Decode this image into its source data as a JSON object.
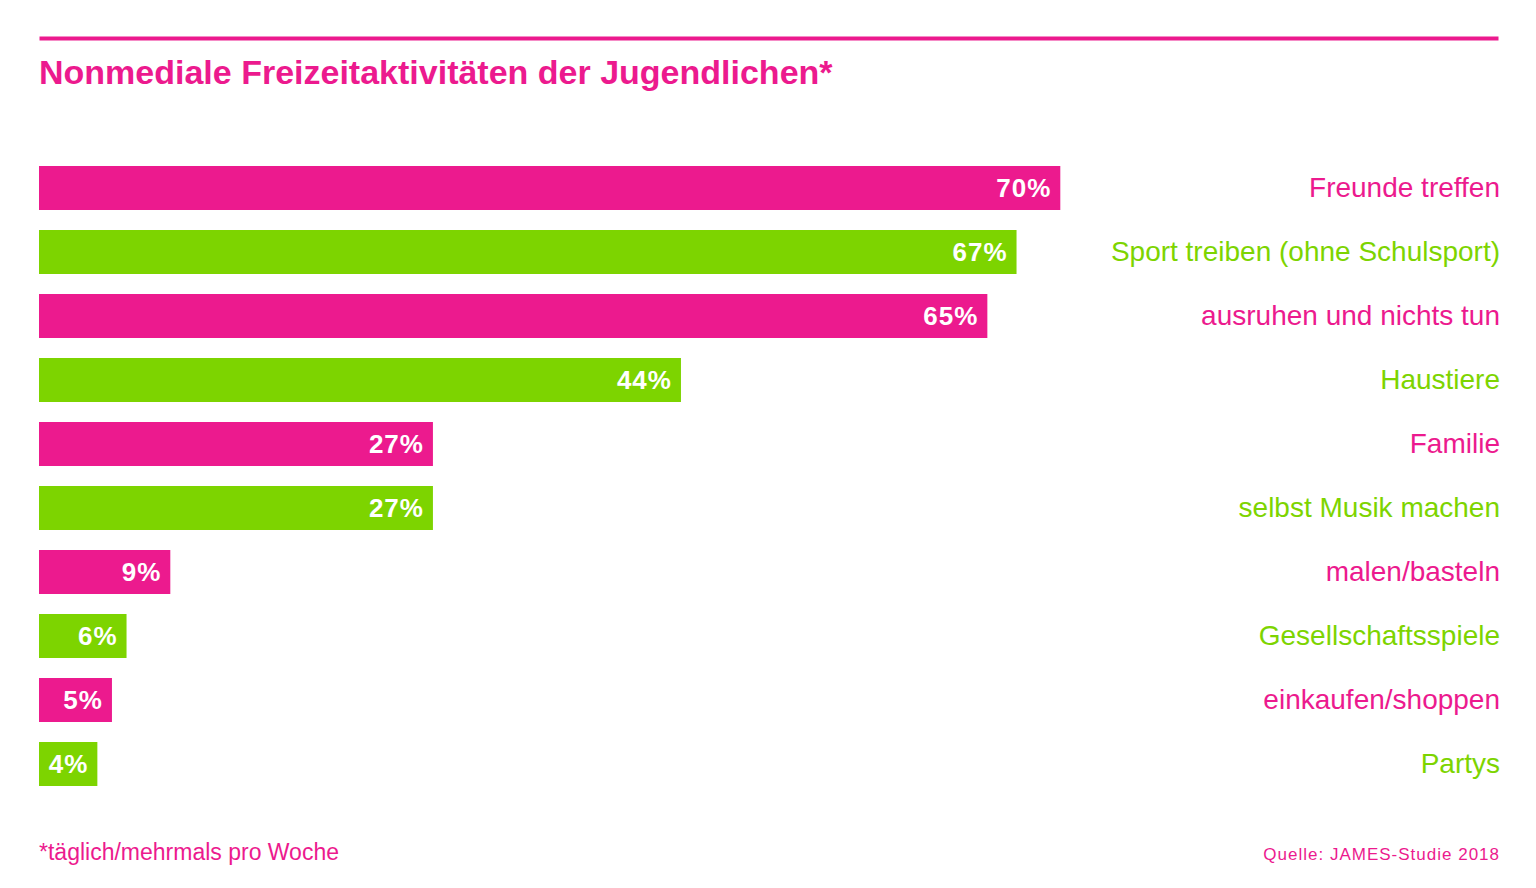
{
  "chart_data": {
    "type": "bar",
    "title": "Nonmediale Freizeitaktivitäten der Jugendlichen*",
    "orientation": "horizontal",
    "categories": [
      "Freunde treffen",
      "Sport treiben (ohne Schulsport)",
      "ausruhen und nichts tun",
      "Haustiere",
      "Familie",
      "selbst Musik machen",
      "malen/basteln",
      "Gesellschaftsspiele",
      "einkaufen/shoppen",
      "Partys"
    ],
    "values": [
      70,
      67,
      65,
      44,
      27,
      27,
      9,
      6,
      5,
      4
    ],
    "value_labels": [
      "70%",
      "67%",
      "65%",
      "44%",
      "27%",
      "27%",
      "9%",
      "6%",
      "5%",
      "4%"
    ],
    "colors": [
      "#ec1a8e",
      "#7dd400",
      "#ec1a8e",
      "#7dd400",
      "#ec1a8e",
      "#7dd400",
      "#ec1a8e",
      "#7dd400",
      "#ec1a8e",
      "#7dd400"
    ],
    "xlim": [
      0,
      100
    ],
    "data_labels": true,
    "tick_labels": "y",
    "grid": false,
    "footnote": "*täglich/mehrmals pro Woche",
    "source": "Quelle: JAMES-Studie 2018"
  }
}
